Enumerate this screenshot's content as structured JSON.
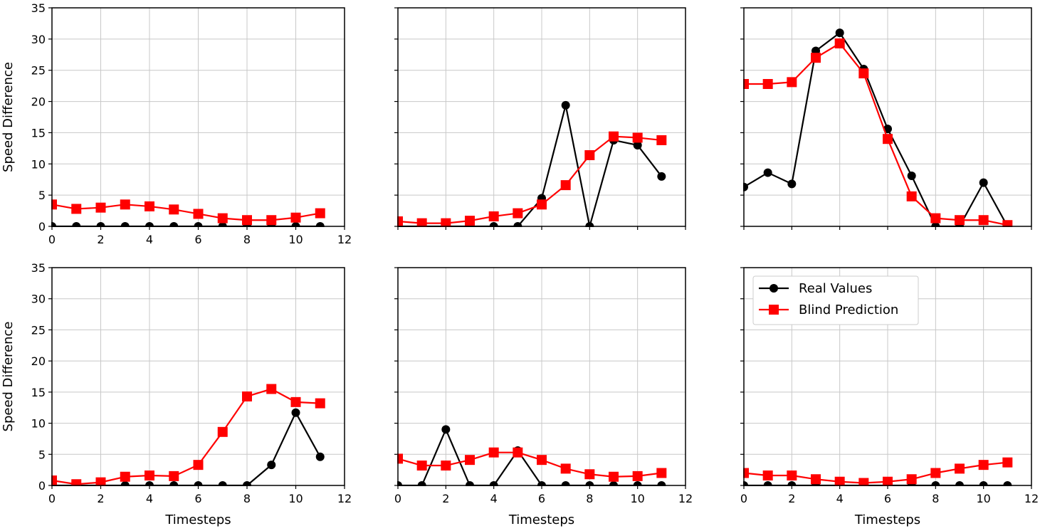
{
  "figure": {
    "legend": {
      "entries": [
        {
          "label": "Real Values",
          "color": "#000000",
          "marker": "circle"
        },
        {
          "label": "Blind Prediction",
          "color": "#ff0000",
          "marker": "square"
        }
      ],
      "panel": 5,
      "placement": "upper-left"
    }
  },
  "chart_data": [
    {
      "type": "line",
      "title": "",
      "xlabel": "",
      "ylabel": "Speed Difference",
      "xlim": [
        0,
        12
      ],
      "ylim": [
        0,
        35
      ],
      "xticks": [
        0,
        2,
        4,
        6,
        8,
        10,
        12
      ],
      "yticks": [
        0,
        5,
        10,
        15,
        20,
        25,
        30,
        35
      ],
      "show_xticklabels": true,
      "show_yticklabels": true,
      "grid": true,
      "x": [
        0,
        1,
        2,
        3,
        4,
        5,
        6,
        7,
        8,
        9,
        10,
        11
      ],
      "series": [
        {
          "name": "Real Values",
          "color": "#000000",
          "marker": "circle",
          "values": [
            0,
            0,
            0,
            0,
            0,
            0,
            0,
            0,
            0,
            0,
            0,
            0
          ]
        },
        {
          "name": "Blind Prediction",
          "color": "#ff0000",
          "marker": "square",
          "values": [
            3.5,
            2.8,
            3.0,
            3.5,
            3.2,
            2.7,
            2.0,
            1.3,
            1.0,
            1.0,
            1.4,
            2.1
          ]
        }
      ]
    },
    {
      "type": "line",
      "title": "",
      "xlabel": "",
      "ylabel": "",
      "xlim": [
        0,
        12
      ],
      "ylim": [
        0,
        35
      ],
      "xticks": [
        0,
        2,
        4,
        6,
        8,
        10,
        12
      ],
      "yticks": [
        0,
        5,
        10,
        15,
        20,
        25,
        30,
        35
      ],
      "show_xticklabels": false,
      "show_yticklabels": false,
      "grid": true,
      "x": [
        0,
        1,
        2,
        3,
        4,
        5,
        6,
        7,
        8,
        9,
        10,
        11
      ],
      "series": [
        {
          "name": "Real Values",
          "color": "#000000",
          "marker": "circle",
          "values": [
            0,
            0,
            0,
            0,
            0,
            0,
            4.5,
            19.4,
            0,
            13.8,
            13.0,
            8.0
          ]
        },
        {
          "name": "Blind Prediction",
          "color": "#ff0000",
          "marker": "square",
          "values": [
            0.8,
            0.5,
            0.5,
            0.9,
            1.6,
            2.1,
            3.5,
            6.6,
            11.4,
            14.4,
            14.2,
            13.8
          ]
        }
      ]
    },
    {
      "type": "line",
      "title": "",
      "xlabel": "",
      "ylabel": "",
      "xlim": [
        0,
        12
      ],
      "ylim": [
        0,
        35
      ],
      "xticks": [
        0,
        2,
        4,
        6,
        8,
        10,
        12
      ],
      "yticks": [
        0,
        5,
        10,
        15,
        20,
        25,
        30,
        35
      ],
      "show_xticklabels": false,
      "show_yticklabels": false,
      "grid": true,
      "x": [
        0,
        1,
        2,
        3,
        4,
        5,
        6,
        7,
        8,
        9,
        10,
        11
      ],
      "series": [
        {
          "name": "Real Values",
          "color": "#000000",
          "marker": "circle",
          "values": [
            6.3,
            8.6,
            6.8,
            28.1,
            31.0,
            25.2,
            15.6,
            8.1,
            0,
            0,
            7.0,
            0
          ]
        },
        {
          "name": "Blind Prediction",
          "color": "#ff0000",
          "marker": "square",
          "values": [
            22.8,
            22.8,
            23.1,
            27.0,
            29.3,
            24.5,
            14.0,
            4.8,
            1.3,
            1.0,
            1.0,
            0.2
          ]
        }
      ]
    },
    {
      "type": "line",
      "title": "",
      "xlabel": "Timesteps",
      "ylabel": "Speed Difference",
      "xlim": [
        0,
        12
      ],
      "ylim": [
        0,
        35
      ],
      "xticks": [
        0,
        2,
        4,
        6,
        8,
        10,
        12
      ],
      "yticks": [
        0,
        5,
        10,
        15,
        20,
        25,
        30,
        35
      ],
      "show_xticklabels": true,
      "show_yticklabels": true,
      "grid": true,
      "x": [
        0,
        1,
        2,
        3,
        4,
        5,
        6,
        7,
        8,
        9,
        10,
        11
      ],
      "series": [
        {
          "name": "Real Values",
          "color": "#000000",
          "marker": "circle",
          "values": [
            0,
            0,
            0,
            0,
            0,
            0,
            0,
            0,
            0,
            3.3,
            11.7,
            4.6
          ]
        },
        {
          "name": "Blind Prediction",
          "color": "#ff0000",
          "marker": "square",
          "values": [
            0.8,
            0.2,
            0.5,
            1.4,
            1.6,
            1.5,
            3.3,
            8.6,
            14.3,
            15.5,
            13.4,
            13.2
          ]
        }
      ]
    },
    {
      "type": "line",
      "title": "",
      "xlabel": "Timesteps",
      "ylabel": "",
      "xlim": [
        0,
        12
      ],
      "ylim": [
        0,
        35
      ],
      "xticks": [
        0,
        2,
        4,
        6,
        8,
        10,
        12
      ],
      "yticks": [
        0,
        5,
        10,
        15,
        20,
        25,
        30,
        35
      ],
      "show_xticklabels": true,
      "show_yticklabels": false,
      "grid": true,
      "x": [
        0,
        1,
        2,
        3,
        4,
        5,
        6,
        7,
        8,
        9,
        10,
        11
      ],
      "series": [
        {
          "name": "Real Values",
          "color": "#000000",
          "marker": "circle",
          "values": [
            0,
            0,
            9.0,
            0,
            0,
            5.6,
            0,
            0,
            0,
            0,
            0,
            0
          ]
        },
        {
          "name": "Blind Prediction",
          "color": "#ff0000",
          "marker": "square",
          "values": [
            4.3,
            3.2,
            3.2,
            4.1,
            5.3,
            5.3,
            4.1,
            2.7,
            1.8,
            1.4,
            1.5,
            2.0
          ]
        }
      ]
    },
    {
      "type": "line",
      "title": "",
      "xlabel": "Timesteps",
      "ylabel": "",
      "xlim": [
        0,
        12
      ],
      "ylim": [
        0,
        35
      ],
      "xticks": [
        0,
        2,
        4,
        6,
        8,
        10,
        12
      ],
      "yticks": [
        0,
        5,
        10,
        15,
        20,
        25,
        30,
        35
      ],
      "show_xticklabels": true,
      "show_yticklabels": false,
      "grid": true,
      "x": [
        0,
        1,
        2,
        3,
        4,
        5,
        6,
        7,
        8,
        9,
        10,
        11
      ],
      "series": [
        {
          "name": "Real Values",
          "color": "#000000",
          "marker": "circle",
          "values": [
            0,
            0,
            0,
            0,
            0,
            0,
            0,
            0,
            0,
            0,
            0,
            0
          ]
        },
        {
          "name": "Blind Prediction",
          "color": "#ff0000",
          "marker": "square",
          "values": [
            2.0,
            1.6,
            1.6,
            1.0,
            0.6,
            0.4,
            0.6,
            1.0,
            2.0,
            2.7,
            3.3,
            3.7
          ]
        }
      ]
    }
  ]
}
